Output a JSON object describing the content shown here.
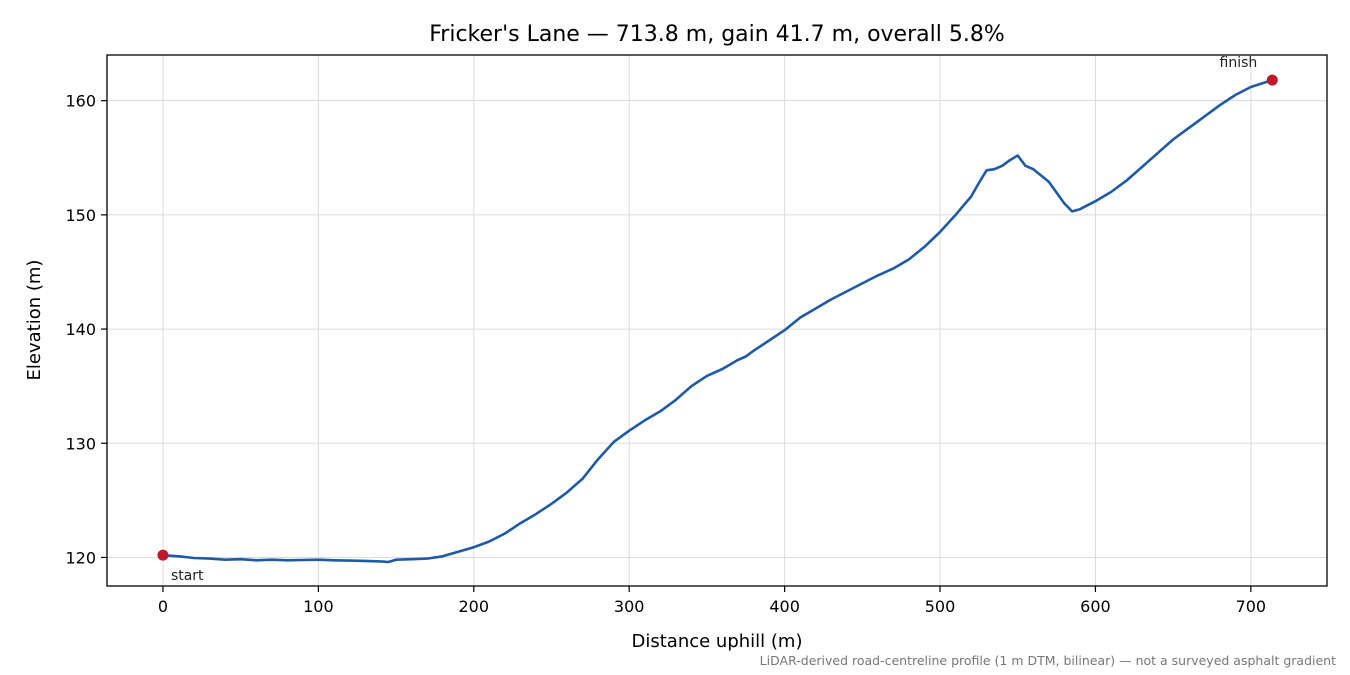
{
  "chart_data": {
    "type": "line",
    "title": "Fricker's Lane — 713.8 m, gain 41.7 m, overall 5.8%",
    "xlabel": "Distance uphill (m)",
    "ylabel": "Elevation (m)",
    "xlim": [
      -36,
      749
    ],
    "ylim": [
      117.5,
      164.0
    ],
    "xticks": [
      0,
      100,
      200,
      300,
      400,
      500,
      600,
      700
    ],
    "yticks": [
      120,
      130,
      140,
      150,
      160
    ],
    "grid": true,
    "footnote": "LiDAR-derived road-centreline profile (1 m DTM, bilinear) — not a surveyed asphalt gradient",
    "annotations": [
      {
        "text": "start",
        "x": 0,
        "y": 120.2
      },
      {
        "text": "finish",
        "x": 713.8,
        "y": 161.8
      }
    ],
    "series": [
      {
        "color": "#1f5aa8",
        "x": [
          0,
          10,
          20,
          30,
          40,
          50,
          60,
          70,
          80,
          90,
          100,
          110,
          120,
          130,
          140,
          145,
          150,
          160,
          170,
          180,
          190,
          200,
          210,
          220,
          230,
          240,
          250,
          260,
          270,
          280,
          290,
          300,
          310,
          320,
          330,
          340,
          350,
          360,
          370,
          375,
          380,
          390,
          400,
          410,
          420,
          430,
          440,
          450,
          460,
          470,
          480,
          490,
          500,
          510,
          515,
          520,
          525,
          530,
          535,
          540,
          545,
          550,
          555,
          560,
          570,
          580,
          585,
          590,
          600,
          610,
          620,
          630,
          640,
          650,
          660,
          670,
          680,
          690,
          700,
          713.8
        ],
        "y": [
          120.2,
          120.1,
          119.95,
          119.9,
          119.8,
          119.85,
          119.75,
          119.8,
          119.75,
          119.78,
          119.8,
          119.75,
          119.72,
          119.7,
          119.65,
          119.6,
          119.8,
          119.85,
          119.9,
          120.1,
          120.5,
          120.9,
          121.4,
          122.1,
          123.0,
          123.8,
          124.7,
          125.7,
          126.9,
          128.6,
          130.1,
          131.1,
          132.0,
          132.8,
          133.8,
          135.0,
          135.9,
          136.5,
          137.3,
          137.6,
          138.1,
          139.0,
          139.9,
          141.0,
          141.8,
          142.6,
          143.3,
          144.0,
          144.7,
          145.3,
          146.1,
          147.2,
          148.5,
          150.0,
          150.8,
          151.6,
          152.8,
          153.9,
          154.0,
          154.3,
          154.8,
          155.2,
          154.3,
          154.0,
          152.9,
          151.0,
          150.3,
          150.5,
          151.2,
          152.0,
          153.0,
          154.2,
          155.4,
          156.6,
          157.6,
          158.6,
          159.6,
          160.5,
          161.2,
          161.8
        ]
      }
    ]
  }
}
